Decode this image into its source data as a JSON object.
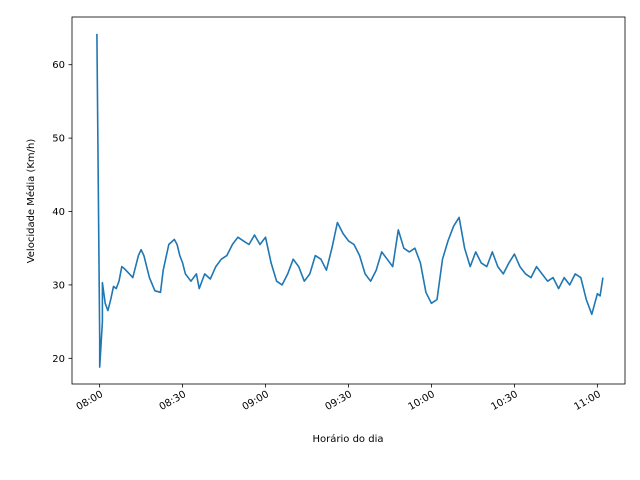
{
  "chart_data": {
    "type": "line",
    "title": "",
    "xlabel": "Horário do dia",
    "ylabel": "Velocidade Média (Km/h)",
    "x_unit": "time of day (HH:MM)",
    "xlim": [
      "07:50",
      "11:10"
    ],
    "ylim": [
      16.5,
      66.5
    ],
    "x_ticks": [
      "08:00",
      "08:30",
      "09:00",
      "09:30",
      "10:00",
      "10:30",
      "11:00"
    ],
    "y_ticks": [
      20,
      30,
      40,
      50,
      60
    ],
    "grid": false,
    "legend": "none",
    "series": [
      {
        "color": "#1f77b4",
        "x": [
          "07:59",
          "08:00",
          "08:00",
          "08:01",
          "08:01",
          "08:02",
          "08:03",
          "08:04",
          "08:05",
          "08:06",
          "08:07",
          "08:08",
          "08:09",
          "08:10",
          "08:12",
          "08:14",
          "08:15",
          "08:16",
          "08:18",
          "08:20",
          "08:22",
          "08:23",
          "08:25",
          "08:27",
          "08:28",
          "08:29",
          "08:30",
          "08:31",
          "08:33",
          "08:35",
          "08:36",
          "08:38",
          "08:40",
          "08:42",
          "08:44",
          "08:46",
          "08:48",
          "08:50",
          "08:52",
          "08:54",
          "08:56",
          "08:58",
          "09:00",
          "09:02",
          "09:04",
          "09:06",
          "09:08",
          "09:10",
          "09:12",
          "09:14",
          "09:16",
          "09:18",
          "09:20",
          "09:22",
          "09:24",
          "09:26",
          "09:28",
          "09:30",
          "09:32",
          "09:34",
          "09:36",
          "09:38",
          "09:40",
          "09:42",
          "09:44",
          "09:46",
          "09:48",
          "09:50",
          "09:52",
          "09:54",
          "09:56",
          "09:58",
          "10:00",
          "10:02",
          "10:04",
          "10:06",
          "10:08",
          "10:10",
          "10:12",
          "10:14",
          "10:16",
          "10:18",
          "10:20",
          "10:22",
          "10:24",
          "10:26",
          "10:28",
          "10:30",
          "10:32",
          "10:34",
          "10:36",
          "10:38",
          "10:40",
          "10:42",
          "10:44",
          "10:46",
          "10:48",
          "10:50",
          "10:52",
          "10:54",
          "10:56",
          "10:58",
          "11:00",
          "11:01",
          "11:02"
        ],
        "y": [
          64.2,
          22.5,
          18.8,
          25.0,
          30.3,
          27.5,
          26.5,
          28.0,
          29.8,
          29.5,
          30.5,
          32.5,
          32.2,
          31.8,
          31.0,
          34.0,
          34.8,
          34.0,
          31.0,
          29.2,
          29.0,
          32.0,
          35.5,
          36.2,
          35.5,
          34.0,
          33.0,
          31.5,
          30.5,
          31.5,
          29.5,
          31.5,
          30.8,
          32.5,
          33.5,
          34.0,
          35.5,
          36.5,
          36.0,
          35.5,
          36.8,
          35.5,
          36.5,
          33.0,
          30.5,
          30.0,
          31.5,
          33.5,
          32.5,
          30.5,
          31.5,
          34.0,
          33.5,
          32.0,
          35.0,
          38.5,
          37.0,
          36.0,
          35.5,
          34.0,
          31.5,
          30.5,
          32.0,
          34.5,
          33.5,
          32.5,
          37.5,
          35.0,
          34.5,
          35.0,
          33.0,
          29.0,
          27.5,
          28.0,
          33.5,
          36.0,
          38.0,
          39.2,
          35.0,
          32.5,
          34.5,
          33.0,
          32.5,
          34.5,
          32.5,
          31.5,
          33.0,
          34.2,
          32.5,
          31.5,
          31.0,
          32.5,
          31.5,
          30.5,
          31.0,
          29.5,
          31.0,
          30.0,
          31.5,
          31.0,
          28.0,
          26.0,
          28.8,
          28.5,
          31.0
        ]
      }
    ]
  }
}
